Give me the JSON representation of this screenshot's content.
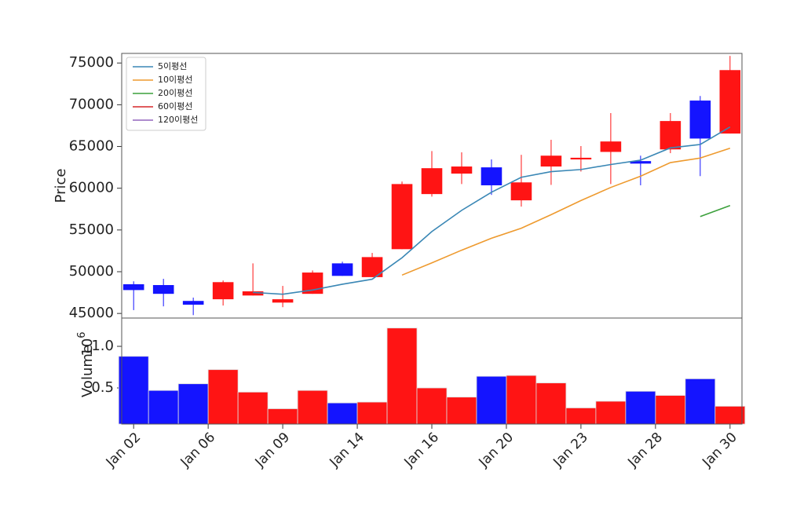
{
  "chart_data": [
    {
      "type": "candlestick",
      "ylabel": "Price",
      "x": [
        0,
        1,
        2,
        3,
        4,
        5,
        6,
        7,
        8,
        9,
        10,
        11,
        12,
        13,
        14,
        15,
        16,
        17,
        18,
        19,
        20
      ],
      "open": [
        48500,
        48400,
        46500,
        46700,
        47150,
        46300,
        47350,
        51000,
        49350,
        52700,
        59300,
        61750,
        62500,
        58550,
        62600,
        63450,
        64350,
        63250,
        64650,
        70500,
        66550
      ],
      "high": [
        48850,
        49150,
        46900,
        48950,
        51000,
        48300,
        50150,
        51200,
        52250,
        60800,
        64450,
        64300,
        63450,
        64000,
        65800,
        65050,
        69000,
        63900,
        69000,
        71050,
        75850
      ],
      "low": [
        45400,
        45850,
        44800,
        45950,
        47150,
        45750,
        47350,
        49500,
        49350,
        52700,
        59000,
        60500,
        59200,
        57800,
        60400,
        62000,
        60500,
        60350,
        64200,
        61450,
        66550
      ],
      "close": [
        47800,
        47350,
        46050,
        48750,
        47650,
        46700,
        49900,
        49500,
        51750,
        60500,
        62400,
        62600,
        60350,
        60700,
        63900,
        63650,
        65600,
        62950,
        68050,
        65950,
        74150
      ],
      "up_color": "#ff1414",
      "down_color": "#1414ff",
      "series": [
        {
          "name": "5이평선",
          "color": "#3a87b5",
          "values": [
            null,
            null,
            null,
            null,
            47520,
            47300,
            47810,
            48500,
            49100,
            51670,
            54810,
            57350,
            59520,
            61310,
            61990,
            62240,
            62840,
            63360,
            64830,
            65240,
            67340
          ]
        },
        {
          "name": "10이평선",
          "color": "#ee9a2e",
          "values": [
            null,
            null,
            null,
            null,
            null,
            null,
            null,
            null,
            null,
            49595,
            51055,
            52580,
            54010,
            55205,
            56830,
            58525,
            60095,
            61440,
            63070,
            63615,
            64790
          ]
        },
        {
          "name": "20이평선",
          "color": "#3ca03c",
          "values": [
            null,
            null,
            null,
            null,
            null,
            null,
            null,
            null,
            null,
            null,
            null,
            null,
            null,
            null,
            null,
            null,
            null,
            null,
            null,
            56605,
            57922
          ]
        },
        {
          "name": "60이평선",
          "color": "#d62728",
          "values": [
            null,
            null,
            null,
            null,
            null,
            null,
            null,
            null,
            null,
            null,
            null,
            null,
            null,
            null,
            null,
            null,
            null,
            null,
            null,
            null,
            null
          ]
        },
        {
          "name": "120이평선",
          "color": "#9467bd",
          "values": [
            null,
            null,
            null,
            null,
            null,
            null,
            null,
            null,
            null,
            null,
            null,
            null,
            null,
            null,
            null,
            null,
            null,
            null,
            null,
            null,
            null
          ]
        }
      ],
      "legend": "upper left",
      "xlim": [
        -0.4,
        20.4
      ],
      "ylim": [
        44450,
        76150
      ],
      "yticks": [
        45000,
        50000,
        55000,
        60000,
        65000,
        70000,
        75000
      ]
    },
    {
      "type": "bar",
      "ylabel": "Volume",
      "offset_base": "10",
      "offset_exponent": "6",
      "x": [
        0,
        1,
        2,
        3,
        4,
        5,
        6,
        7,
        8,
        9,
        10,
        11,
        12,
        13,
        14,
        15,
        16,
        17,
        18,
        19,
        20
      ],
      "values": [
        880000,
        470000,
        550000,
        720000,
        450000,
        250000,
        470000,
        320000,
        330000,
        1220000,
        500000,
        390000,
        640000,
        650000,
        560000,
        260000,
        340000,
        460000,
        410000,
        610000,
        280000
      ],
      "xlim": [
        -0.4,
        20.4
      ],
      "ylim": [
        66000,
        1340000
      ],
      "yticks": [
        {
          "value": 500000,
          "label": "0.5"
        },
        {
          "value": 1000000,
          "label": "1.0"
        }
      ],
      "xticks": [
        {
          "value": 0,
          "label": "Jan 02"
        },
        {
          "value": 2.5,
          "label": "Jan 06"
        },
        {
          "value": 5,
          "label": "Jan 09"
        },
        {
          "value": 7.5,
          "label": "Jan 14"
        },
        {
          "value": 10,
          "label": "Jan 16"
        },
        {
          "value": 12.5,
          "label": "Jan 20"
        },
        {
          "value": 15,
          "label": "Jan 23"
        },
        {
          "value": 17.5,
          "label": "Jan 28"
        },
        {
          "value": 20,
          "label": "Jan 30"
        }
      ]
    }
  ]
}
